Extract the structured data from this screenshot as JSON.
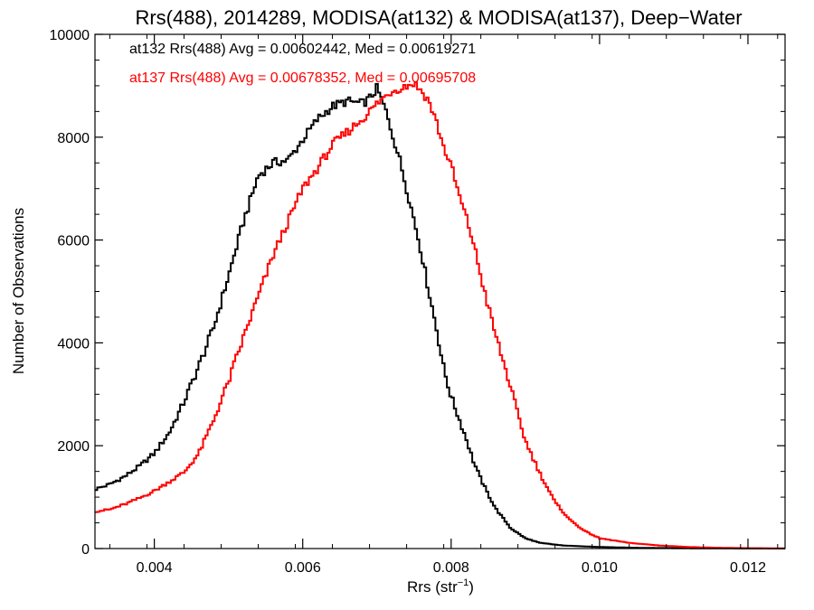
{
  "chart_data": {
    "type": "line",
    "title": "Rrs(488), 2014289, MODISA(at132) & MODISA(at137), Deep−Water",
    "xlabel": "Rrs (str",
    "xlabel_sup": "−1",
    "xlabel_end": ")",
    "ylabel": "Number of Observations",
    "xlim": [
      0.0032,
      0.0125
    ],
    "ylim": [
      0,
      10000
    ],
    "x_ticks": [
      0.004,
      0.006,
      0.008,
      0.01,
      0.012
    ],
    "x_tick_labels": [
      "0.004",
      "0.006",
      "0.008",
      "0.010",
      "0.012"
    ],
    "y_ticks": [
      0,
      2000,
      4000,
      6000,
      8000,
      10000
    ],
    "y_tick_labels": [
      "0",
      "2000",
      "4000",
      "6000",
      "8000",
      "10000"
    ],
    "annotations": [
      {
        "text": "at132 Rrs(488) Avg = 0.00602442, Med = 0.00619271",
        "color": "#000000"
      },
      {
        "text": "at137 Rrs(488) Avg = 0.00678352, Med = 0.00695708",
        "color": "#ff0000"
      }
    ],
    "series": [
      {
        "color": "#000000",
        "x": [
          0.0032,
          0.0034,
          0.0036,
          0.0038,
          0.004,
          0.0042,
          0.0044,
          0.0046,
          0.0048,
          0.005,
          0.0052,
          0.0054,
          0.0056,
          0.0058,
          0.006,
          0.0062,
          0.0064,
          0.0066,
          0.0068,
          0.0069,
          0.007,
          0.0071,
          0.0072,
          0.0073,
          0.0074,
          0.0075,
          0.0076,
          0.0077,
          0.0078,
          0.0079,
          0.008,
          0.0081,
          0.0082,
          0.0083,
          0.0084,
          0.0085,
          0.0086,
          0.0088,
          0.009,
          0.0092,
          0.0095,
          0.01,
          0.0105,
          0.011,
          0.0115,
          0.012,
          0.0125
        ],
        "y": [
          1150,
          1250,
          1400,
          1600,
          1850,
          2250,
          2850,
          3550,
          4300,
          5300,
          6350,
          7250,
          7500,
          7550,
          7950,
          8350,
          8600,
          8700,
          8650,
          8750,
          8950,
          8600,
          8100,
          7600,
          7000,
          6400,
          5750,
          5000,
          4300,
          3500,
          2950,
          2550,
          2150,
          1700,
          1350,
          1050,
          780,
          400,
          200,
          110,
          60,
          30,
          15,
          8,
          4,
          2,
          0
        ]
      },
      {
        "color": "#ff0000",
        "x": [
          0.0032,
          0.0034,
          0.0036,
          0.0038,
          0.004,
          0.0042,
          0.0044,
          0.0046,
          0.0048,
          0.005,
          0.0052,
          0.0054,
          0.0056,
          0.0058,
          0.006,
          0.0062,
          0.0064,
          0.0066,
          0.0068,
          0.007,
          0.0072,
          0.0073,
          0.0074,
          0.0075,
          0.0076,
          0.0077,
          0.0078,
          0.0079,
          0.008,
          0.0081,
          0.0082,
          0.0083,
          0.0084,
          0.0085,
          0.0086,
          0.0087,
          0.0088,
          0.0089,
          0.009,
          0.0092,
          0.0094,
          0.0096,
          0.0098,
          0.01,
          0.0104,
          0.0108,
          0.0112,
          0.0116,
          0.012,
          0.0125
        ],
        "y": [
          720,
          760,
          860,
          980,
          1120,
          1300,
          1480,
          1850,
          2500,
          3250,
          4100,
          4900,
          5700,
          6350,
          7000,
          7400,
          7850,
          8100,
          8350,
          8650,
          8900,
          8950,
          9000,
          9050,
          8900,
          8700,
          8300,
          7800,
          7450,
          6900,
          6450,
          5950,
          5300,
          4700,
          4150,
          3650,
          3150,
          2600,
          2100,
          1450,
          900,
          560,
          340,
          200,
          110,
          60,
          30,
          15,
          8,
          3
        ]
      }
    ]
  }
}
